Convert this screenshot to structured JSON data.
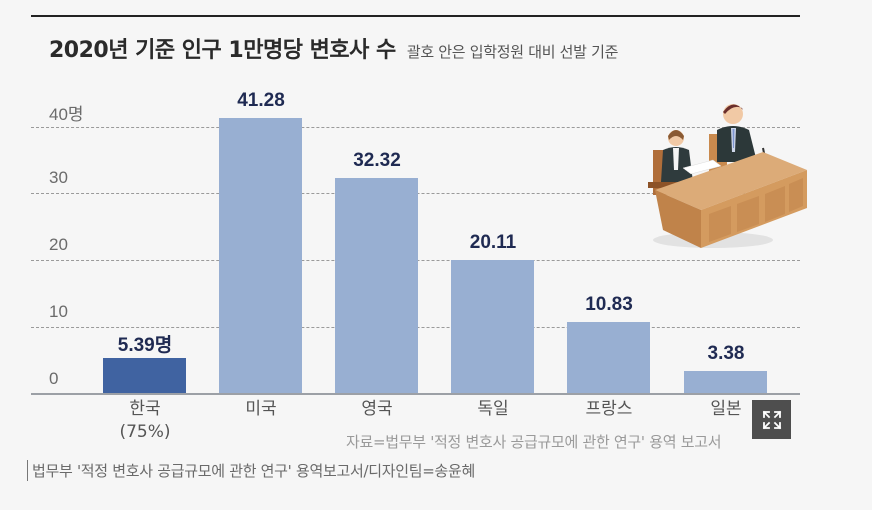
{
  "header": {
    "title": "2020년 기준 인구 1만명당 변호사 수",
    "subtitle": "괄호 안은 입학정원 대비 선발 기준"
  },
  "chart_data": {
    "type": "bar",
    "title": "2020년 기준 인구 1만명당 변호사 수",
    "subtitle": "괄호 안은 입학정원 대비 선발 기준",
    "categories": [
      "한국",
      "미국",
      "영국",
      "독일",
      "프랑스",
      "일본"
    ],
    "category_notes": [
      "(75%)",
      "",
      "",
      "",
      "",
      ""
    ],
    "values": [
      5.39,
      41.28,
      32.32,
      20.11,
      10.83,
      3.38
    ],
    "value_labels": [
      "5.39명",
      "41.28",
      "32.32",
      "20.11",
      "10.83",
      "3.38"
    ],
    "xlabel": "",
    "ylabel": "명",
    "ylim": [
      0,
      40
    ],
    "yticks": [
      0,
      10,
      20,
      30,
      40
    ],
    "ytick_labels": [
      "0",
      "10",
      "20",
      "30",
      "40명"
    ],
    "grid": true,
    "highlight_index": 0,
    "colors": {
      "highlight": "#4063a1",
      "default": "#98afd2",
      "value_text": "#1f2a52"
    },
    "source": "자료=법무부 '적정 변호사 공급규모에 관한 연구' 용역 보고서"
  },
  "axis": {
    "ticks": [
      "0",
      "10",
      "20",
      "30",
      "40명"
    ]
  },
  "bars": [
    {
      "label": "한국",
      "note": "(75%)",
      "value_label": "5.39명"
    },
    {
      "label": "미국",
      "note": "",
      "value_label": "41.28"
    },
    {
      "label": "영국",
      "note": "",
      "value_label": "32.32"
    },
    {
      "label": "독일",
      "note": "",
      "value_label": "20.11"
    },
    {
      "label": "프랑스",
      "note": "",
      "value_label": "10.83"
    },
    {
      "label": "일본",
      "note": "",
      "value_label": "3.38"
    }
  ],
  "source_inline": "자료=법무부 '적정 변호사 공급규모에 관한 연구' 용역 보고서",
  "caption": "법무부 '적정 변호사 공급규모에 관한 연구' 용역보고서/디자인팀=송윤혜",
  "controls": {
    "expand_icon": "expand-arrows-icon"
  },
  "illustration": {
    "icon": "courtroom-lawyers-illustration"
  }
}
